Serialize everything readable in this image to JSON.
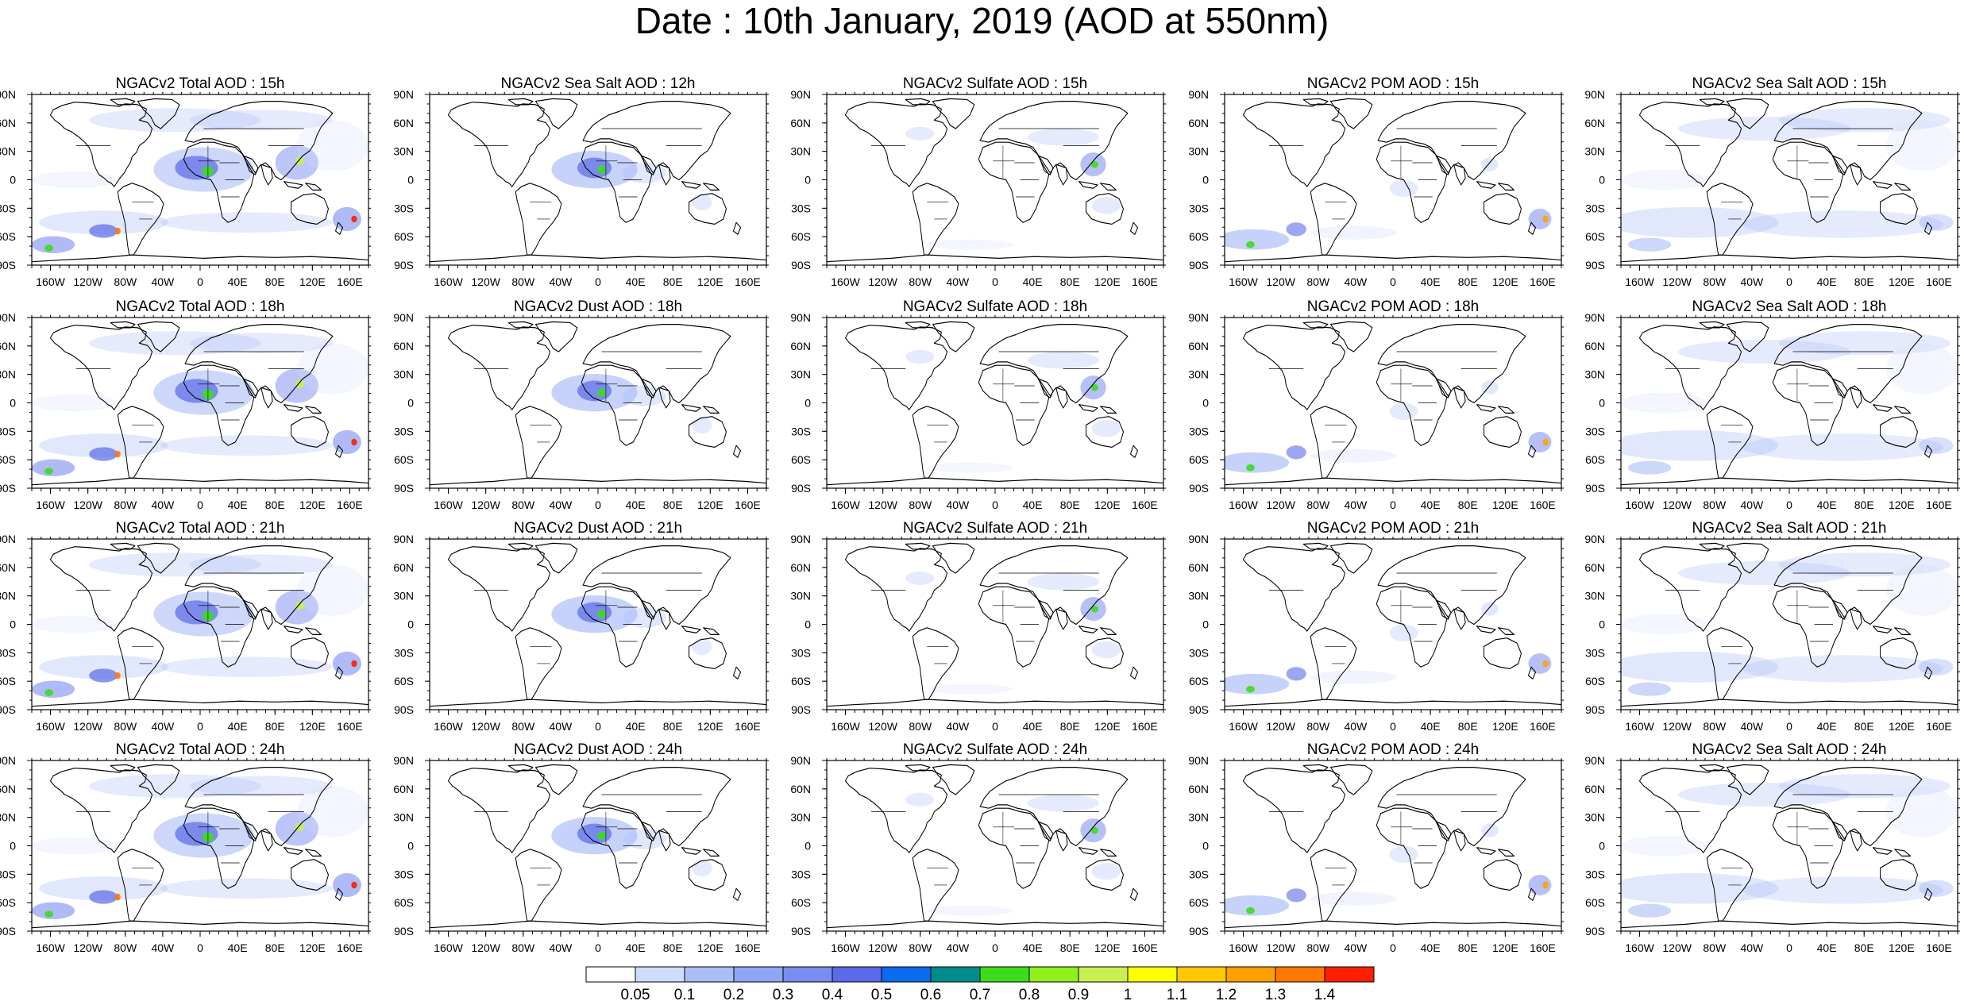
{
  "title": "Date : 10th January, 2019 (AOD at 550nm)",
  "lat_labels": [
    "90N",
    "60N",
    "30N",
    "0",
    "30S",
    "60S",
    "90S"
  ],
  "lon_labels": [
    "160W",
    "120W",
    "80W",
    "40W",
    "0",
    "40E",
    "80E",
    "120E",
    "160E"
  ],
  "panels": [
    [
      "NGACv2 Total AOD : 15h",
      "NGACv2 Sea Salt  AOD : 12h",
      "NGACv2 Sulfate AOD : 15h",
      "NGACv2 POM AOD : 15h",
      "NGACv2 Sea Salt  AOD : 15h"
    ],
    [
      "NGACv2 Total AOD : 18h",
      "NGACv2 Dust AOD : 18h",
      "NGACv2 Sulfate AOD : 18h",
      "NGACv2 POM AOD : 18h",
      "NGACv2 Sea Salt  AOD : 18h"
    ],
    [
      "NGACv2 Total AOD : 21h",
      "NGACv2 Dust AOD : 21h",
      "NGACv2 Sulfate AOD : 21h",
      "NGACv2 POM AOD : 21h",
      "NGACv2 Sea Salt  AOD : 21h"
    ],
    [
      "NGACv2 Total AOD : 24h",
      "NGACv2 Dust AOD : 24h",
      "NGACv2 Sulfate AOD : 24h",
      "NGACv2 POM AOD : 24h",
      "NGACv2 Sea Salt  AOD : 24h"
    ]
  ],
  "colorbar": {
    "labels": [
      "0.05",
      "0.1",
      "0.2",
      "0.3",
      "0.4",
      "0.5",
      "0.6",
      "0.7",
      "0.8",
      "0.9",
      "1",
      "1.1",
      "1.2",
      "1.3",
      "1.4"
    ],
    "colors": [
      "#ffffff",
      "#d0dcfc",
      "#aabef8",
      "#8ea6f4",
      "#7a8cf0",
      "#5a6ae8",
      "#0a6af0",
      "#008c8c",
      "#3cdc1c",
      "#8ef01c",
      "#c8f050",
      "#ffff00",
      "#ffc800",
      "#ffa000",
      "#ff7800",
      "#ff1e00"
    ]
  }
}
